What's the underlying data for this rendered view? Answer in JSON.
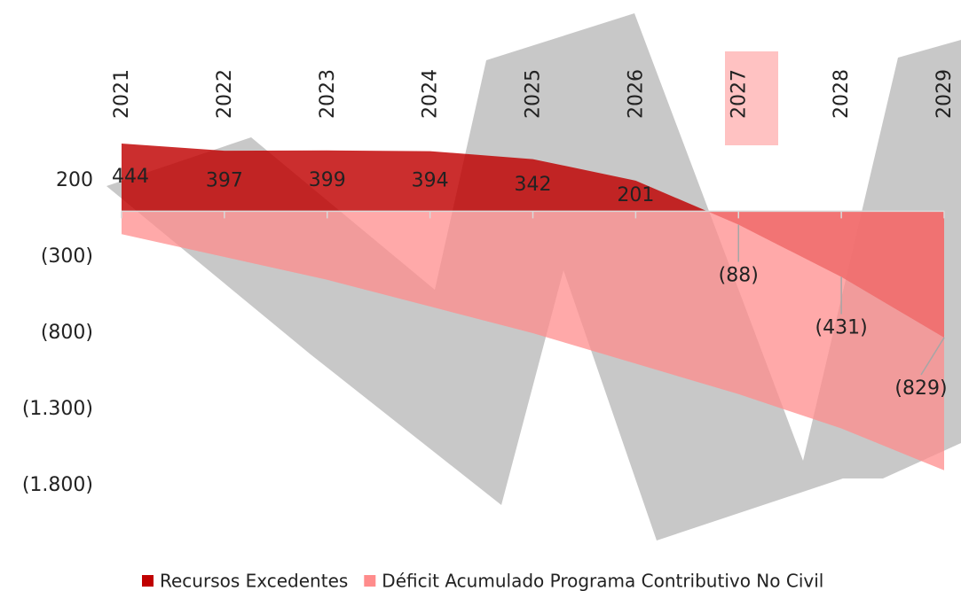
{
  "chart_data": {
    "type": "area",
    "categories": [
      "2021",
      "2022",
      "2023",
      "2024",
      "2025",
      "2026",
      "2027",
      "2028",
      "2029"
    ],
    "series": [
      {
        "name": "Recursos Excedentes",
        "color": "#c00000",
        "values": [
          444,
          397,
          399,
          394,
          342,
          201,
          -88,
          -431,
          -829
        ],
        "value_labels": [
          "444",
          "397",
          "399",
          "394",
          "342",
          "201",
          "(88)",
          "(431)",
          "(829)"
        ]
      },
      {
        "name": "Déficit Acumulado Programa Contributivo No Civil",
        "color": "#ff8c8c",
        "values": [
          -150,
          -300,
          -450,
          -625,
          -800,
          -1000,
          -1200,
          -1425,
          -1700
        ]
      }
    ],
    "ylim": [
      200,
      -1800
    ],
    "yticks": [
      200,
      {
        "value": -300,
        "label": "(300)"
      },
      {
        "value": -800,
        "label": "(800)"
      },
      {
        "value": -1300,
        "label": "(1.300)"
      },
      {
        "value": -1800,
        "label": "(1.800)"
      }
    ],
    "legend": "bottom"
  }
}
